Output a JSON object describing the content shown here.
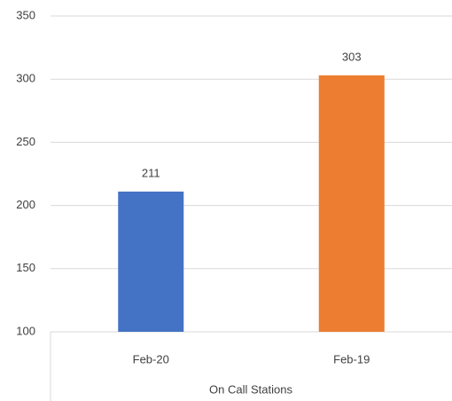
{
  "chart_data": {
    "type": "bar",
    "x_label": "On Call Stations",
    "categories": [
      "Feb-20",
      "Feb-19"
    ],
    "values": [
      211,
      303
    ],
    "colors": [
      "#4472c4",
      "#ed7d31"
    ],
    "ylim": [
      100,
      350
    ],
    "yticks": [
      100,
      150,
      200,
      250,
      300,
      350
    ],
    "grid": true,
    "data_labels": true
  }
}
